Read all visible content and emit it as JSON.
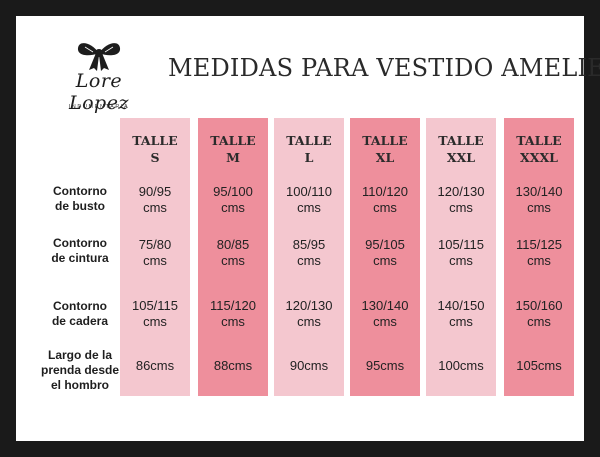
{
  "brand": {
    "name": "Lore Lopez",
    "subtitle": "INDUMENTARIA"
  },
  "title": "MEDIDAS PARA VESTIDO AMELIE",
  "colors": {
    "light_column": "#f4c7cf",
    "dark_column": "#ee8f9c",
    "frame": "#1a1a1a"
  },
  "row_labels": [
    {
      "line1": "Contorno",
      "line2": "de busto",
      "line3": ""
    },
    {
      "line1": "Contorno",
      "line2": "de cintura",
      "line3": ""
    },
    {
      "line1": "Contorno",
      "line2": "de cadera",
      "line3": ""
    },
    {
      "line1": "Largo de la",
      "line2": "prenda desde",
      "line3": "el hombro"
    }
  ],
  "sizes": [
    {
      "head1": "TALLE",
      "head2": "S",
      "busto": [
        "90/95",
        "cms"
      ],
      "cintura": [
        "75/80",
        "cms"
      ],
      "cadera": [
        "105/115",
        "cms"
      ],
      "largo": "86cms"
    },
    {
      "head1": "TALLE",
      "head2": "M",
      "busto": [
        "95/100",
        "cms"
      ],
      "cintura": [
        "80/85",
        "cms"
      ],
      "cadera": [
        "115/120",
        "cms"
      ],
      "largo": "88cms"
    },
    {
      "head1": "TALLE",
      "head2": "L",
      "busto": [
        "100/110",
        "cms"
      ],
      "cintura": [
        "85/95",
        "cms"
      ],
      "cadera": [
        "120/130",
        "cms"
      ],
      "largo": "90cms"
    },
    {
      "head1": "TALLE",
      "head2": "XL",
      "busto": [
        "110/120",
        "cms"
      ],
      "cintura": [
        "95/105",
        "cms"
      ],
      "cadera": [
        "130/140",
        "cms"
      ],
      "largo": "95cms"
    },
    {
      "head1": "TALLE",
      "head2": "XXL",
      "busto": [
        "120/130",
        "cms"
      ],
      "cintura": [
        "105/115",
        "cms"
      ],
      "cadera": [
        "140/150",
        "cms"
      ],
      "largo": "100cms"
    },
    {
      "head1": "TALLE",
      "head2": "XXXL",
      "busto": [
        "130/140",
        "cms"
      ],
      "cintura": [
        "115/125",
        "cms"
      ],
      "cadera": [
        "150/160",
        "cms"
      ],
      "largo": "105cms"
    }
  ]
}
